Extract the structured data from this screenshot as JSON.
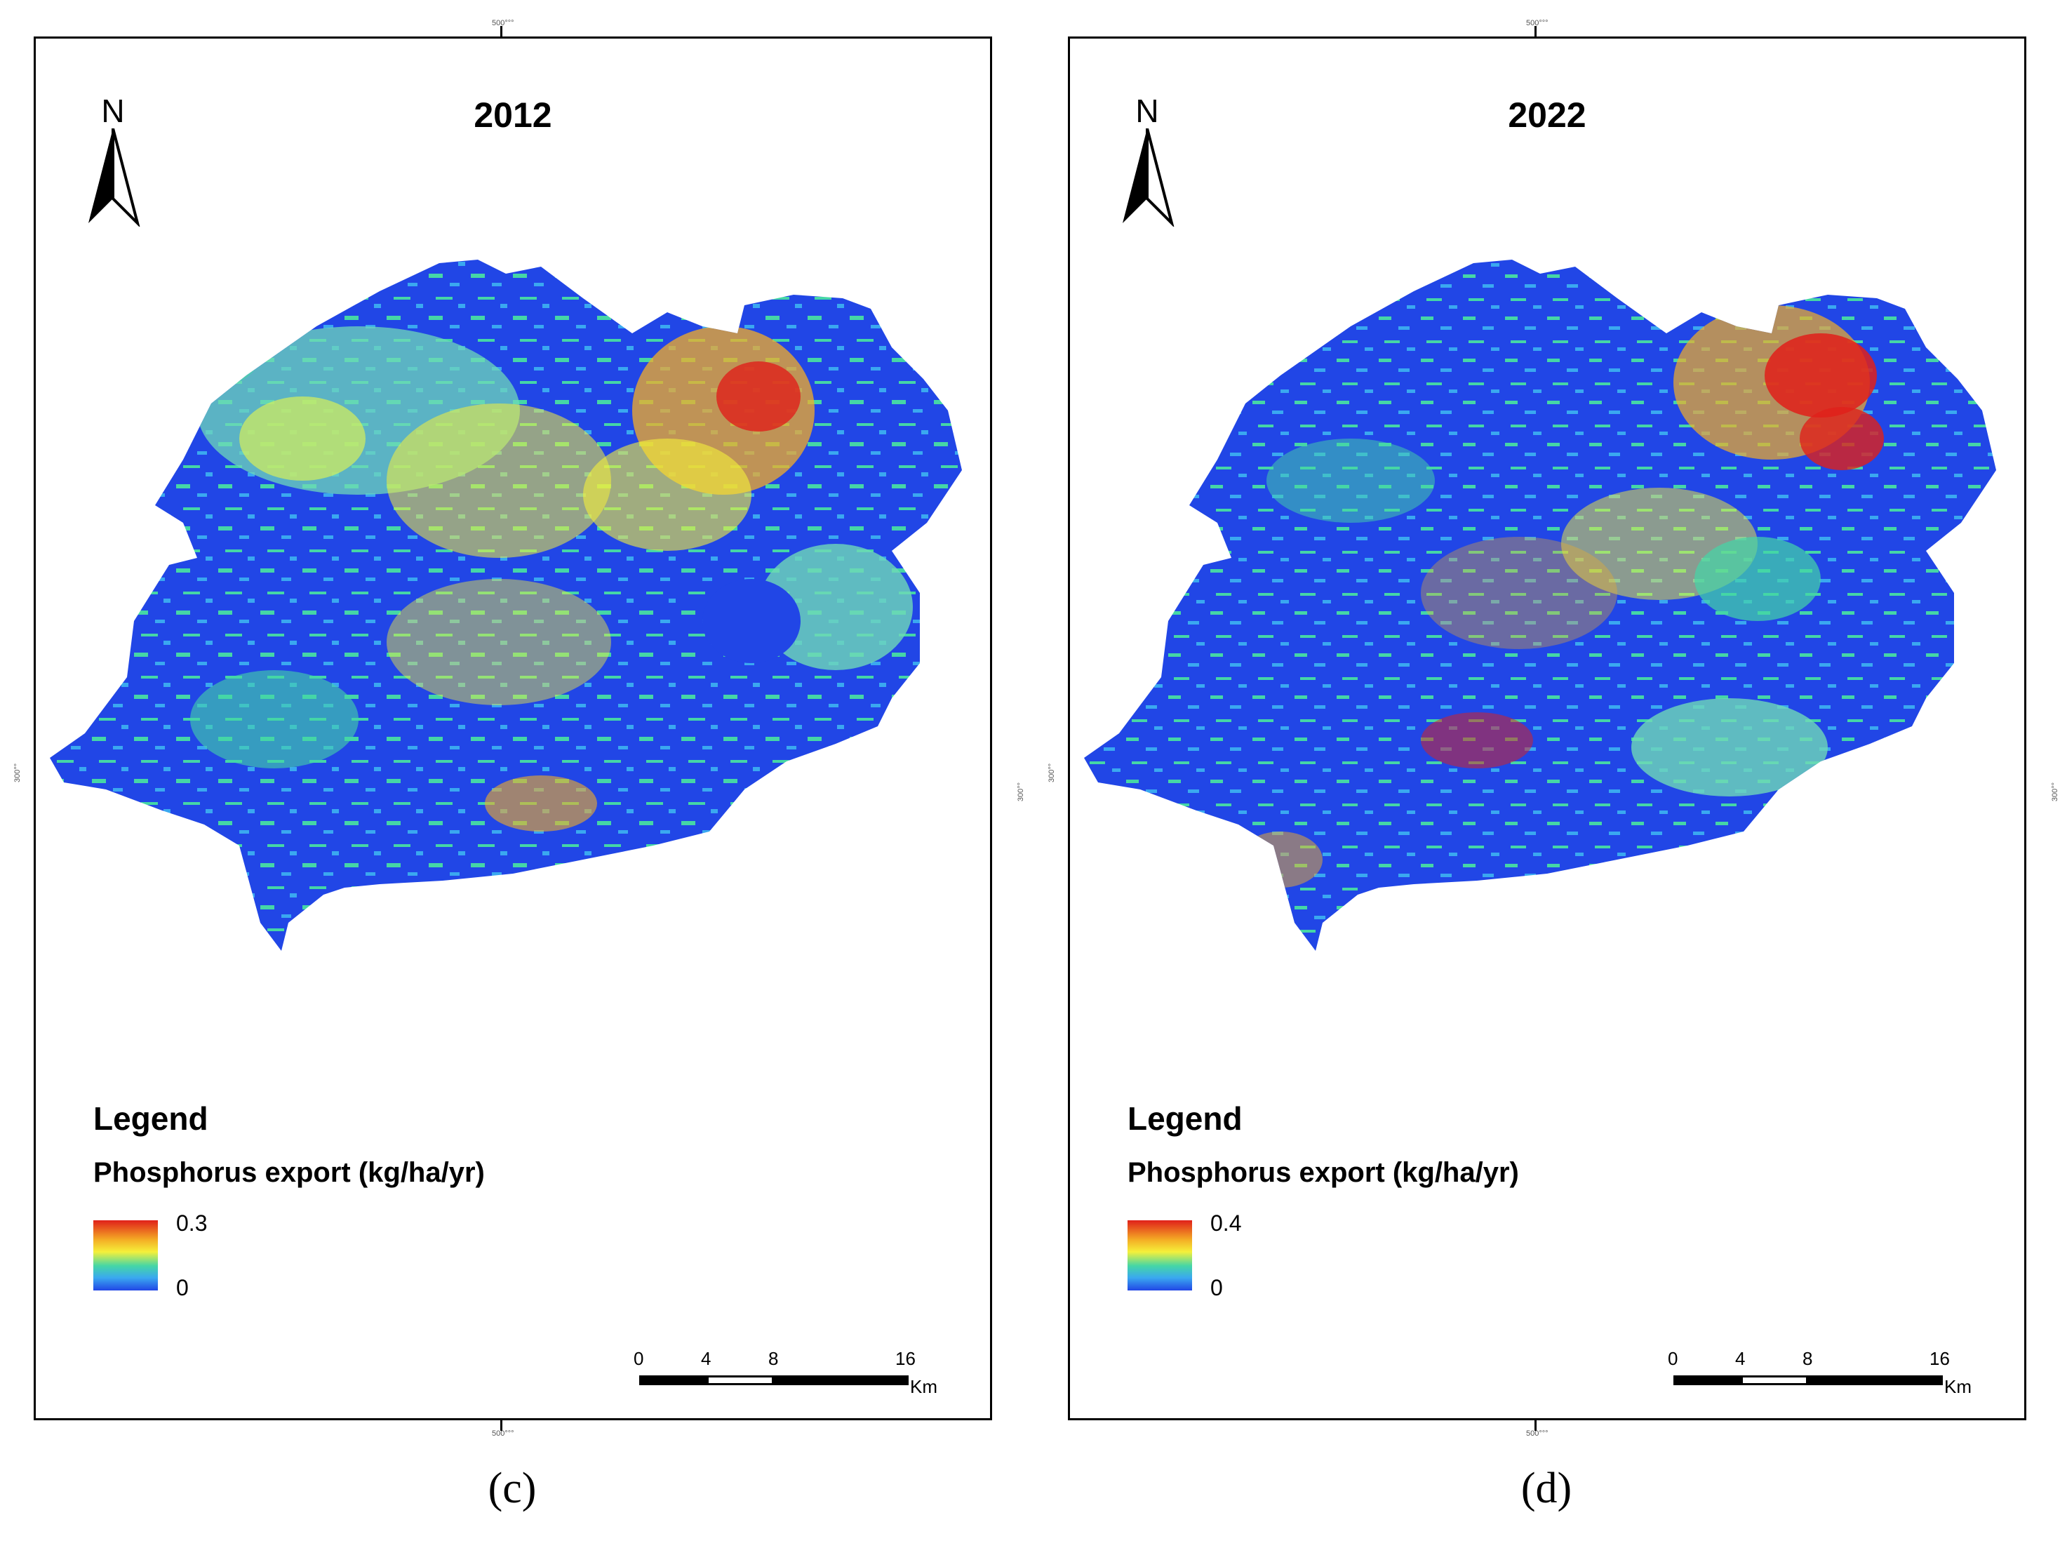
{
  "panels": [
    {
      "title": "2012",
      "north_label": "N",
      "coord_ticks": {
        "top": "500°°°",
        "bottom": "500°°°",
        "left": "300°°",
        "right": "300°°"
      },
      "legend": {
        "title": "Legend",
        "subtitle": "Phosphorus export (kg/ha/yr)",
        "max_label": "0.3",
        "min_label": "0",
        "colors": [
          "#e0201a",
          "#f4ae25",
          "#f5f03a",
          "#45d6a6",
          "#3aa8f0",
          "#2146e6"
        ]
      },
      "scalebar": {
        "labels": [
          "0",
          "4",
          "8",
          "16"
        ],
        "unit": "Km"
      },
      "caption": "(c)"
    },
    {
      "title": "2022",
      "north_label": "N",
      "coord_ticks": {
        "top": "500°°°",
        "bottom": "500°°°",
        "left": "300°°",
        "right": "300°°"
      },
      "legend": {
        "title": "Legend",
        "subtitle": "Phosphorus export (kg/ha/yr)",
        "max_label": "0.4",
        "min_label": "0",
        "colors": [
          "#e0201a",
          "#f4ae25",
          "#f5f03a",
          "#45d6a6",
          "#3aa8f0",
          "#2146e6"
        ]
      },
      "scalebar": {
        "labels": [
          "0",
          "4",
          "8",
          "16"
        ],
        "unit": "Km"
      },
      "caption": "(d)"
    }
  ]
}
